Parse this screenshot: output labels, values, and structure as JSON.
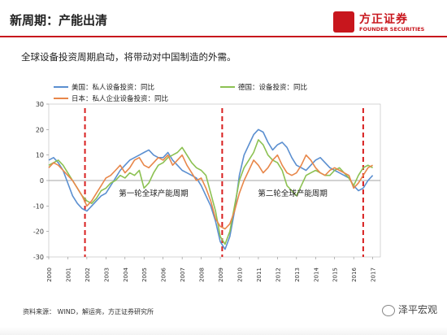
{
  "header": {
    "title": "新周期：产能出清",
    "logo_text": "方正证券",
    "logo_sub": "FOUNDER SECURITIES"
  },
  "subtitle": "全球设备投资周期启动，将带动对中国制造的外需。",
  "source": "资料来源： WIND，解运亮，方正证券研究所",
  "watermark": "泽平宏观",
  "colors": {
    "us": "#5b8fd0",
    "de": "#8cc152",
    "jp": "#e8874a",
    "dashed": "#d81e1e",
    "brand": "#c8161d"
  },
  "chart_data": {
    "type": "line",
    "ylim": [
      -30,
      30
    ],
    "yticks": [
      30,
      20,
      10,
      0,
      -10,
      -20,
      -30
    ],
    "xticks": [
      "2000",
      "2001",
      "2002",
      "2003",
      "2004",
      "2005",
      "2006",
      "2007",
      "2008",
      "2009",
      "2010",
      "2011",
      "2012",
      "2013",
      "2014",
      "2015",
      "2016",
      "2017"
    ],
    "cycle_lines": [
      2001.9,
      2009.1,
      2016.5
    ],
    "annotations": [
      {
        "text": "第一轮全球产能周期",
        "x": 2005.5,
        "y": -6
      },
      {
        "text": "第二轮全球产能周期",
        "x": 2012.8,
        "y": -6
      }
    ],
    "series": [
      {
        "name": "美国：私人设备投资：同比",
        "key": "us",
        "x": [
          2000,
          2000.25,
          2000.5,
          2000.75,
          2001,
          2001.25,
          2001.5,
          2001.75,
          2002,
          2002.25,
          2002.5,
          2002.75,
          2003,
          2003.25,
          2003.5,
          2003.75,
          2004,
          2004.25,
          2004.5,
          2004.75,
          2005,
          2005.25,
          2005.5,
          2005.75,
          2006,
          2006.25,
          2006.5,
          2006.75,
          2007,
          2007.25,
          2007.5,
          2007.75,
          2008,
          2008.25,
          2008.5,
          2008.75,
          2009,
          2009.25,
          2009.5,
          2009.75,
          2010,
          2010.25,
          2010.5,
          2010.75,
          2011,
          2011.25,
          2011.5,
          2011.75,
          2012,
          2012.25,
          2012.5,
          2012.75,
          2013,
          2013.25,
          2013.5,
          2013.75,
          2014,
          2014.25,
          2014.5,
          2014.75,
          2015,
          2015.25,
          2015.5,
          2015.75,
          2016,
          2016.25,
          2016.5,
          2016.75,
          2017
        ],
        "values": [
          8,
          9,
          7,
          4,
          -1,
          -6,
          -9,
          -11,
          -12,
          -10,
          -8,
          -6,
          -5,
          -2,
          1,
          4,
          6,
          8,
          9,
          10,
          11,
          12,
          10,
          9,
          9,
          11,
          8,
          6,
          4,
          3,
          2,
          1,
          -2,
          -6,
          -10,
          -16,
          -24,
          -27,
          -22,
          -12,
          2,
          10,
          14,
          18,
          20,
          19,
          15,
          12,
          14,
          15,
          13,
          9,
          6,
          5,
          4,
          6,
          8,
          9,
          7,
          5,
          4,
          3,
          2,
          1,
          -2,
          -4,
          -3,
          0,
          2
        ]
      },
      {
        "name": "德国：设备投资：同比",
        "key": "de",
        "x": [
          2000,
          2000.25,
          2000.5,
          2000.75,
          2001,
          2001.25,
          2001.5,
          2001.75,
          2002,
          2002.25,
          2002.5,
          2002.75,
          2003,
          2003.25,
          2003.5,
          2003.75,
          2004,
          2004.25,
          2004.5,
          2004.75,
          2005,
          2005.25,
          2005.5,
          2005.75,
          2006,
          2006.25,
          2006.5,
          2006.75,
          2007,
          2007.25,
          2007.5,
          2007.75,
          2008,
          2008.25,
          2008.5,
          2008.75,
          2009,
          2009.25,
          2009.5,
          2009.75,
          2010,
          2010.25,
          2010.5,
          2010.75,
          2011,
          2011.25,
          2011.5,
          2011.75,
          2012,
          2012.25,
          2012.5,
          2012.75,
          2013,
          2013.25,
          2013.5,
          2013.75,
          2014,
          2014.25,
          2014.5,
          2014.75,
          2015,
          2015.25,
          2015.5,
          2015.75,
          2016,
          2016.25,
          2016.5,
          2016.75,
          2017
        ],
        "values": [
          6,
          7,
          8,
          6,
          3,
          0,
          -3,
          -6,
          -8,
          -9,
          -7,
          -4,
          -3,
          -1,
          0,
          2,
          1,
          3,
          2,
          4,
          -3,
          -1,
          3,
          6,
          7,
          9,
          10,
          11,
          13,
          10,
          7,
          5,
          4,
          2,
          -5,
          -12,
          -22,
          -25,
          -20,
          -10,
          0,
          5,
          8,
          11,
          16,
          14,
          10,
          8,
          7,
          4,
          -2,
          -4,
          -6,
          -2,
          2,
          3,
          4,
          3,
          2,
          2,
          4,
          5,
          3,
          1,
          -2,
          2,
          5,
          6,
          5
        ]
      },
      {
        "name": "日本：私人企业设备投资：同比",
        "key": "jp",
        "x": [
          2000,
          2000.25,
          2000.5,
          2000.75,
          2001,
          2001.25,
          2001.5,
          2001.75,
          2002,
          2002.25,
          2002.5,
          2002.75,
          2003,
          2003.25,
          2003.5,
          2003.75,
          2004,
          2004.25,
          2004.5,
          2004.75,
          2005,
          2005.25,
          2005.5,
          2005.75,
          2006,
          2006.25,
          2006.5,
          2006.75,
          2007,
          2007.25,
          2007.5,
          2007.75,
          2008,
          2008.25,
          2008.5,
          2008.75,
          2009,
          2009.25,
          2009.5,
          2009.75,
          2010,
          2010.25,
          2010.5,
          2010.75,
          2011,
          2011.25,
          2011.5,
          2011.75,
          2012,
          2012.25,
          2012.5,
          2012.75,
          2013,
          2013.25,
          2013.5,
          2013.75,
          2014,
          2014.25,
          2014.5,
          2014.75,
          2015,
          2015.25,
          2015.5,
          2015.75,
          2016,
          2016.25,
          2016.5,
          2016.75,
          2017
        ],
        "values": [
          5,
          7,
          6,
          4,
          2,
          0,
          -3,
          -6,
          -10,
          -8,
          -5,
          -2,
          1,
          2,
          4,
          6,
          3,
          5,
          8,
          9,
          6,
          5,
          7,
          9,
          8,
          10,
          6,
          8,
          10,
          6,
          3,
          0,
          1,
          -3,
          -8,
          -15,
          -18,
          -19,
          -17,
          -12,
          -5,
          0,
          4,
          8,
          6,
          3,
          5,
          8,
          10,
          6,
          3,
          2,
          3,
          6,
          10,
          8,
          5,
          3,
          2,
          4,
          5,
          4,
          3,
          2,
          -3,
          -1,
          2,
          5,
          6
        ]
      }
    ]
  }
}
